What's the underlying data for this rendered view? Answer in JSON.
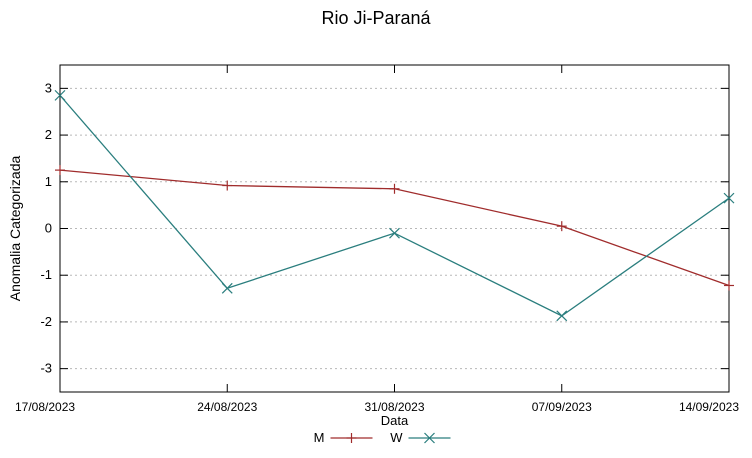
{
  "chart_data": {
    "type": "line",
    "title": "Rio Ji-Paraná",
    "xlabel": "Data",
    "ylabel": "Anomalia Categorizada",
    "x": [
      "17/08/2023",
      "24/08/2023",
      "31/08/2023",
      "07/09/2023",
      "14/09/2023"
    ],
    "series": [
      {
        "name": "M",
        "color": "#a02c2c",
        "marker": "plus",
        "values": [
          1.25,
          0.92,
          0.85,
          0.05,
          -1.22
        ]
      },
      {
        "name": "W",
        "color": "#2a7e7e",
        "marker": "cross",
        "values": [
          2.85,
          -1.28,
          -0.1,
          -1.87,
          0.65
        ]
      }
    ],
    "ylim": [
      -3.5,
      3.5
    ],
    "yticks": [
      -3,
      -2,
      -1,
      0,
      1,
      2,
      3
    ],
    "grid": "horizontal-dashed",
    "grid_color": "#b8b8b8",
    "axis_color": "#000000",
    "legend_position": "bottom-center"
  }
}
